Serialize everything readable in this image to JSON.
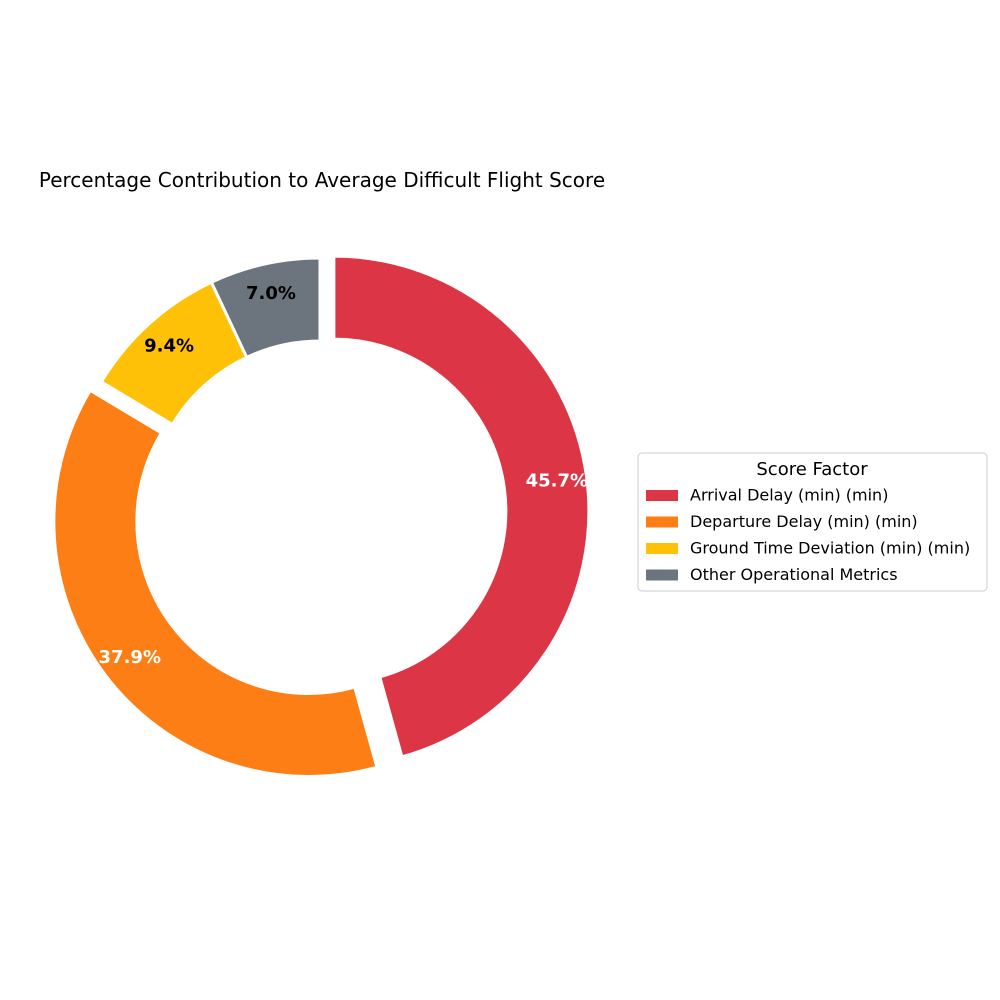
{
  "chart_data": {
    "type": "pie",
    "variant": "donut",
    "title": "Percentage Contribution to Average Difficult Flight Score",
    "legend_title": "Score Factor",
    "legend_position": "right",
    "start_angle_deg": 90,
    "direction": "clockwise",
    "slices": [
      {
        "label": "Arrival Delay (min) (min)",
        "value": 45.7,
        "pct_label": "45.7%",
        "color": "#dc3545",
        "label_color": "#ffffff",
        "exploded": true
      },
      {
        "label": "Departure Delay (min) (min)",
        "value": 37.9,
        "pct_label": "37.9%",
        "color": "#fd7e14",
        "label_color": "#ffffff",
        "exploded": true
      },
      {
        "label": "Ground Time Deviation (min) (min)",
        "value": 9.4,
        "pct_label": "9.4%",
        "color": "#ffc107",
        "label_color": "#000000",
        "exploded": false
      },
      {
        "label": "Other Operational Metrics",
        "value": 7.0,
        "pct_label": "7.0%",
        "color": "#6c757d",
        "label_color": "#000000",
        "exploded": false
      }
    ]
  }
}
